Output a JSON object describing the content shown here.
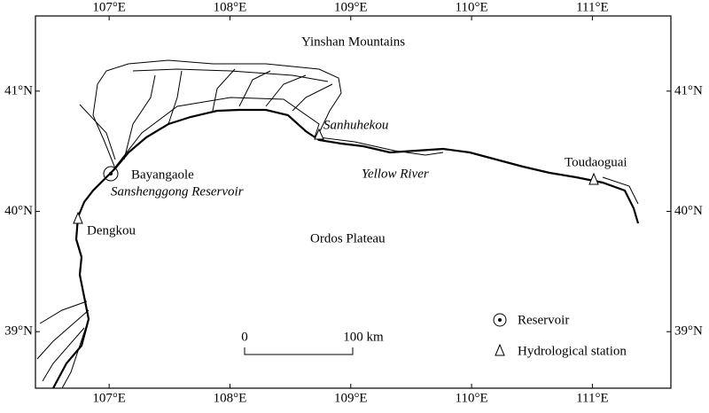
{
  "map": {
    "xlim": [
      106.39,
      111.65
    ],
    "ylim": [
      38.53,
      41.625
    ],
    "xticks": [
      {
        "value": 107,
        "label": "107°E"
      },
      {
        "value": 108,
        "label": "108°E"
      },
      {
        "value": 109,
        "label": "109°E"
      },
      {
        "value": 110,
        "label": "110°E"
      },
      {
        "value": 111,
        "label": "111°E"
      }
    ],
    "yticks": [
      {
        "value": 39,
        "label": "39°N"
      },
      {
        "value": 40,
        "label": "40°N"
      },
      {
        "value": 41,
        "label": "41°N"
      }
    ],
    "places": {
      "yinshan": "Yinshan   Mountains",
      "sanhuhekou": "Sanhuhekou",
      "bayangaole": "Bayangaole",
      "sanshenggong": "Sanshenggong Reservoir",
      "yellow_river": "Yellow River",
      "toudaoguai": "Toudaoguai",
      "dengkou": "Dengkou",
      "ordos": "Ordos  Plateau"
    },
    "scale_bar": {
      "start": "0",
      "end": "100 km"
    },
    "legend": [
      "Reservoir",
      "Hydrological station"
    ]
  }
}
